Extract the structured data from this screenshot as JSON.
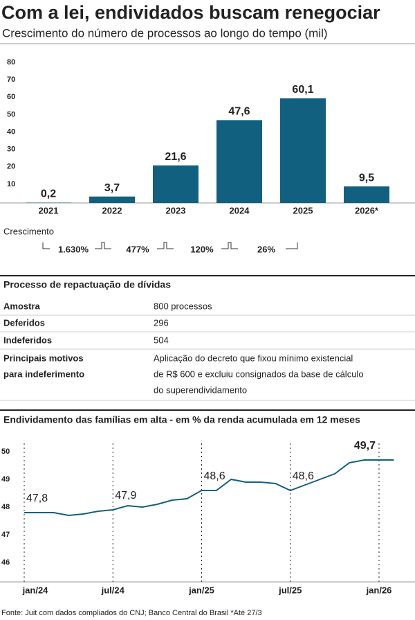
{
  "header": {
    "title": "Com a lei, endividados buscam renegociar",
    "subtitle": "Crescimento do número de processos ao longo do tempo (mil)"
  },
  "chart_data": [
    {
      "type": "bar",
      "categories": [
        "2021",
        "2022",
        "2023",
        "2024",
        "2025",
        "2026*"
      ],
      "values": [
        0.2,
        3.7,
        21.6,
        47.6,
        60.1,
        9.5
      ],
      "value_labels": [
        "0,2",
        "3,7",
        "21,6",
        "47,6",
        "60,1",
        "9,5"
      ],
      "color": "#11607f",
      "ylim": [
        0,
        80
      ],
      "yticks": [
        10,
        20,
        30,
        40,
        50,
        60,
        70,
        80
      ]
    },
    {
      "type": "line",
      "title": "Endividamento das famílias em alta - em % da renda acumulada em 12 meses",
      "categories": [
        "jan/24",
        null,
        null,
        null,
        null,
        null,
        "jul/24",
        null,
        null,
        null,
        null,
        null,
        "jan/25",
        null,
        null,
        null,
        null,
        null,
        "jul/25",
        null,
        null,
        null,
        null,
        null,
        "jan/26",
        null
      ],
      "values": [
        47.8,
        47.8,
        47.8,
        47.7,
        47.75,
        47.85,
        47.9,
        48.05,
        48.0,
        48.1,
        48.25,
        48.3,
        48.6,
        48.6,
        49.0,
        48.9,
        48.9,
        48.85,
        48.6,
        48.8,
        49.0,
        49.2,
        49.6,
        49.7,
        49.7,
        49.7
      ],
      "value_labels": [
        "47,8",
        null,
        null,
        null,
        null,
        null,
        "47,9",
        null,
        null,
        null,
        null,
        null,
        "48,6",
        null,
        null,
        null,
        null,
        null,
        "48,6",
        null,
        null,
        null,
        null,
        null,
        "49,7",
        null
      ],
      "color": "#11607f",
      "ylim": [
        45.3,
        50.3
      ],
      "yticks": [
        46,
        47,
        48,
        49,
        50
      ]
    }
  ],
  "growth": {
    "label": "Crescimento",
    "values": [
      "1.630%",
      "477%",
      "120%",
      "26%"
    ]
  },
  "table": {
    "title": "Processo de repactuação de dívidas",
    "rows": [
      [
        [
          "Amostra"
        ],
        [
          "800 processos"
        ]
      ],
      [
        [
          "Deferidos"
        ],
        [
          "296"
        ]
      ],
      [
        [
          "Indeferidos"
        ],
        [
          "504"
        ]
      ],
      [
        [
          "Principais motivos",
          "para indeferimento"
        ],
        [
          "Aplicação do decreto que fixou mínimo existencial",
          "de R$ 600 e excluiu consignados da base de cálculo",
          "do superendividamento"
        ]
      ]
    ]
  },
  "footer": "Fonte: Juit com dados compliados do CNJ; Banco Central do Brasil *Até 27/3"
}
